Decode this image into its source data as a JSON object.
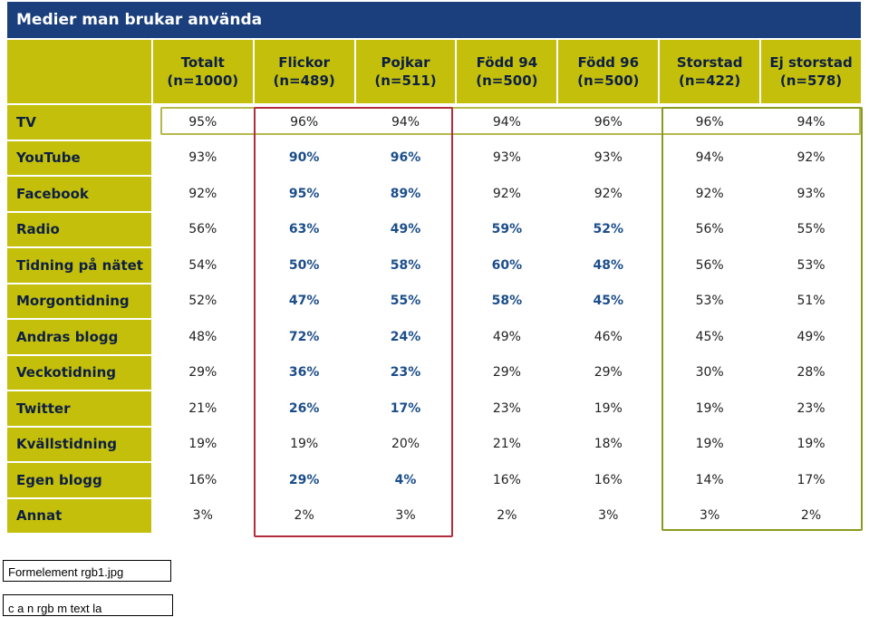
{
  "title": "Medier man brukar använda",
  "columns": [
    {
      "name": "Totalt",
      "n": "(n=1000)"
    },
    {
      "name": "Flickor",
      "n": "(n=489)"
    },
    {
      "name": "Pojkar",
      "n": "(n=511)"
    },
    {
      "name": "Född 94",
      "n": "(n=500)"
    },
    {
      "name": "Född 96",
      "n": "(n=500)"
    },
    {
      "name": "Storstad",
      "n": "(n=422)"
    },
    {
      "name": "Ej storstad",
      "n": "(n=578)"
    }
  ],
  "rows": [
    {
      "label": "TV",
      "values": [
        "95%",
        "96%",
        "94%",
        "94%",
        "96%",
        "96%",
        "94%"
      ]
    },
    {
      "label": "YouTube",
      "values": [
        "93%",
        "90%",
        "96%",
        "93%",
        "93%",
        "94%",
        "92%"
      ]
    },
    {
      "label": "Facebook",
      "values": [
        "92%",
        "95%",
        "89%",
        "92%",
        "92%",
        "92%",
        "93%"
      ]
    },
    {
      "label": "Radio",
      "values": [
        "56%",
        "63%",
        "49%",
        "59%",
        "52%",
        "56%",
        "55%"
      ]
    },
    {
      "label": "Tidning på nätet",
      "values": [
        "54%",
        "50%",
        "58%",
        "60%",
        "48%",
        "56%",
        "53%"
      ]
    },
    {
      "label": "Morgontidning",
      "values": [
        "52%",
        "47%",
        "55%",
        "58%",
        "45%",
        "53%",
        "51%"
      ]
    },
    {
      "label": "Andras blogg",
      "values": [
        "48%",
        "72%",
        "24%",
        "49%",
        "46%",
        "45%",
        "49%"
      ]
    },
    {
      "label": "Veckotidning",
      "values": [
        "29%",
        "36%",
        "23%",
        "29%",
        "29%",
        "30%",
        "28%"
      ]
    },
    {
      "label": "Twitter",
      "values": [
        "21%",
        "26%",
        "17%",
        "23%",
        "19%",
        "19%",
        "23%"
      ]
    },
    {
      "label": "Kvällstidning",
      "values": [
        "19%",
        "19%",
        "20%",
        "21%",
        "18%",
        "19%",
        "19%"
      ]
    },
    {
      "label": "Egen blogg",
      "values": [
        "16%",
        "29%",
        "4%",
        "16%",
        "16%",
        "14%",
        "17%"
      ]
    },
    {
      "label": "Annat",
      "values": [
        "3%",
        "2%",
        "3%",
        "2%",
        "3%",
        "3%",
        "2%"
      ]
    }
  ],
  "highlighted_cells": {
    "1": [
      1,
      2
    ],
    "2": [
      1,
      2
    ],
    "3": [
      1,
      2,
      3,
      4
    ],
    "4": [
      1,
      2,
      3,
      4
    ],
    "5": [
      1,
      2,
      3,
      4
    ],
    "6": [
      1,
      2
    ],
    "7": [
      1,
      2
    ],
    "8": [
      1,
      2
    ],
    "10": [
      1,
      2
    ]
  },
  "captions": [
    "Formelement rgb1.jpg",
    "c a n rgb m text la"
  ],
  "colors": {
    "title_bg": "#1a3f7c",
    "label_bg": "#c3bf0a",
    "highlight_text": "#1b4d8a",
    "gender_box": "#b22d3c",
    "urban_box": "#8a9a1f"
  }
}
